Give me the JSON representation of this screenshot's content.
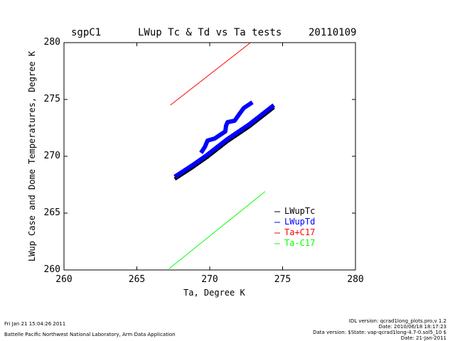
{
  "chart_data": {
    "type": "line",
    "title": "LWup Tc & Td vs Ta tests",
    "left_label": "sgpC1",
    "right_label": "20110109",
    "xlabel": "Ta, Degree K",
    "ylabel": "LWup Case and Dome Temperatures, Degree K",
    "xlim": [
      260,
      280
    ],
    "ylim": [
      260,
      280
    ],
    "xticks": [
      "260",
      "265",
      "270",
      "275",
      "280"
    ],
    "yticks": [
      "260",
      "265",
      "270",
      "275",
      "280"
    ],
    "legend_position": "lower-right",
    "series": [
      {
        "name": "LWupTc",
        "color": "#000000",
        "width": 5,
        "points": [
          [
            267.6,
            268.0
          ],
          [
            268.8,
            269.0
          ],
          [
            269.8,
            269.9
          ],
          [
            271.2,
            271.3
          ],
          [
            272.7,
            272.6
          ],
          [
            274.4,
            274.3
          ]
        ]
      },
      {
        "name": "LWupTd",
        "color": "#0000ff",
        "width": 6,
        "points": [
          [
            267.6,
            268.2
          ],
          [
            268.8,
            269.2
          ],
          [
            269.8,
            270.1
          ],
          [
            271.2,
            271.5
          ],
          [
            272.7,
            272.8
          ],
          [
            274.4,
            274.5
          ]
        ],
        "branch": [
          [
            269.4,
            270.3
          ],
          [
            269.66,
            270.81
          ],
          [
            269.85,
            271.38
          ],
          [
            270.34,
            271.56
          ],
          [
            271.07,
            272.19
          ],
          [
            271.12,
            272.69
          ],
          [
            271.22,
            273.0
          ],
          [
            271.71,
            273.13
          ],
          [
            272.05,
            273.75
          ],
          [
            272.34,
            274.25
          ],
          [
            272.93,
            274.75
          ]
        ]
      },
      {
        "name": "Ta+C17",
        "color": "#ff0000",
        "width": 1,
        "points": [
          [
            267.3,
            274.5
          ],
          [
            272.8,
            280.0
          ]
        ]
      },
      {
        "name": "Ta-C17",
        "color": "#00ff00",
        "width": 1,
        "points": [
          [
            267.2,
            260.1
          ],
          [
            273.8,
            266.9
          ]
        ]
      }
    ]
  },
  "footer": {
    "datetime": "Fri Jan 21 15:04:26 2011",
    "org": "Battelle Pacific Northwest National Laboratory, Arm Data Application",
    "idl_version": "IDL version: qcrad1long_plots.pro,v 1.2",
    "date1": "Date: 2010/06/18 18:17:23",
    "data_version": "Data version: $State: vap-qcrad1long-4.7-0.sol5_10 $",
    "date2": "Date: 21-Jan-2011"
  }
}
